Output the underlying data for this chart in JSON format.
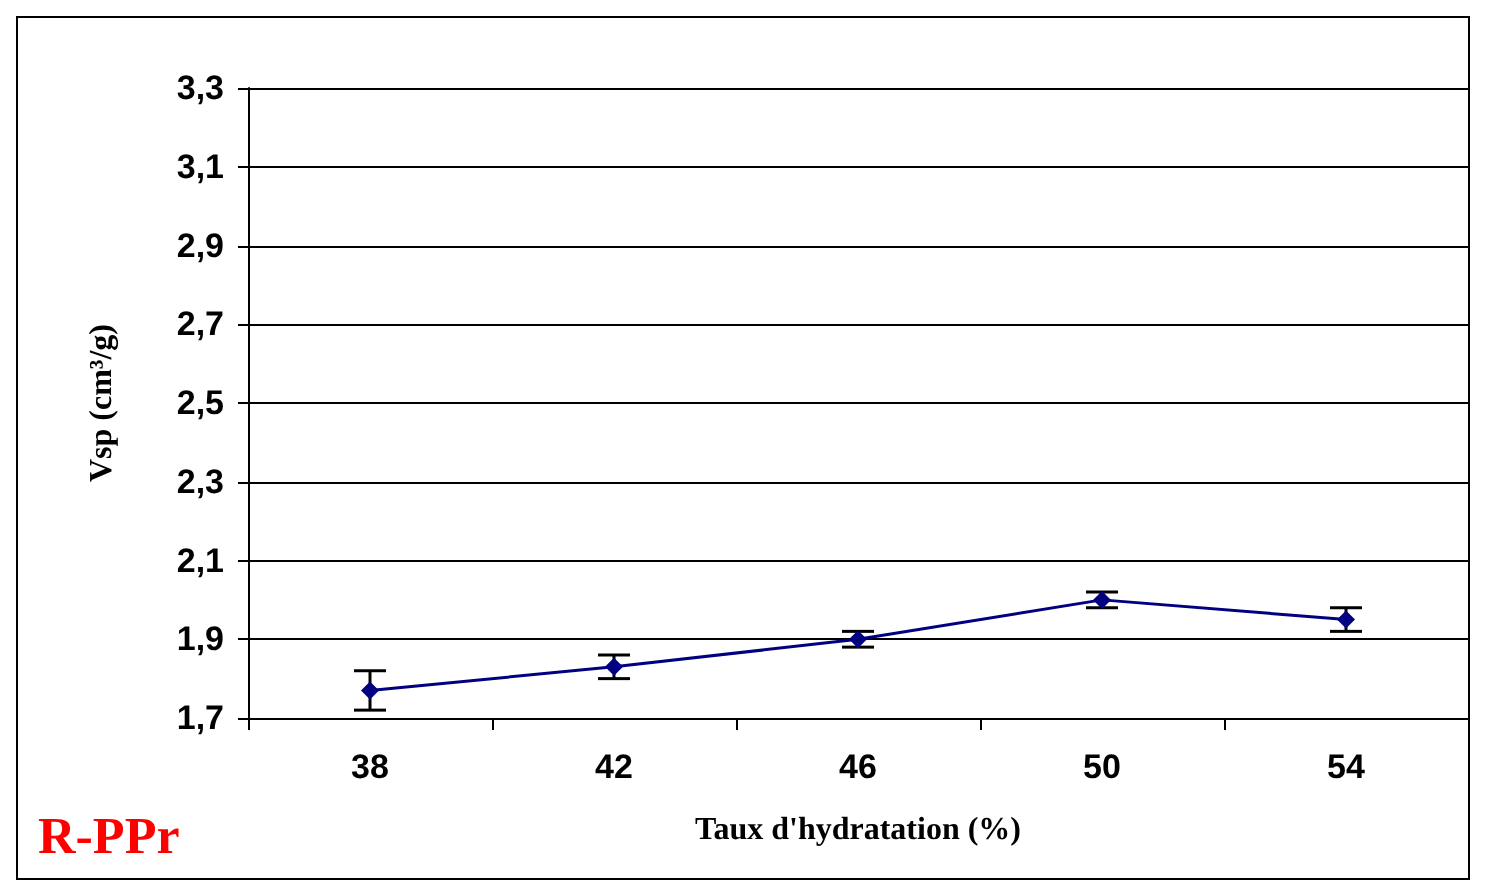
{
  "chart_data": {
    "type": "line",
    "xlabel": "Taux d'hydratation (%)",
    "ylabel": "Vsp (cm³/g)",
    "categories": [
      "38",
      "42",
      "46",
      "50",
      "54"
    ],
    "series": [
      {
        "color": "#000080",
        "values": [
          1.77,
          1.83,
          1.9,
          2.0,
          1.95
        ],
        "errors": [
          0.05,
          0.03,
          0.02,
          0.02,
          0.03
        ]
      }
    ],
    "ylim": [
      1.7,
      3.3
    ],
    "yticks": [
      {
        "value": 1.7,
        "label": "1,7"
      },
      {
        "value": 1.9,
        "label": "1,9"
      },
      {
        "value": 2.1,
        "label": "2,1"
      },
      {
        "value": 2.3,
        "label": "2,3"
      },
      {
        "value": 2.5,
        "label": "2,5"
      },
      {
        "value": 2.7,
        "label": "2,7"
      },
      {
        "value": 2.9,
        "label": "2,9"
      },
      {
        "value": 3.1,
        "label": "3,1"
      },
      {
        "value": 3.3,
        "label": "3,3"
      }
    ],
    "grid": "y",
    "marker": "diamond",
    "line_style": "solid",
    "annotations": [
      "R-PPr"
    ]
  }
}
